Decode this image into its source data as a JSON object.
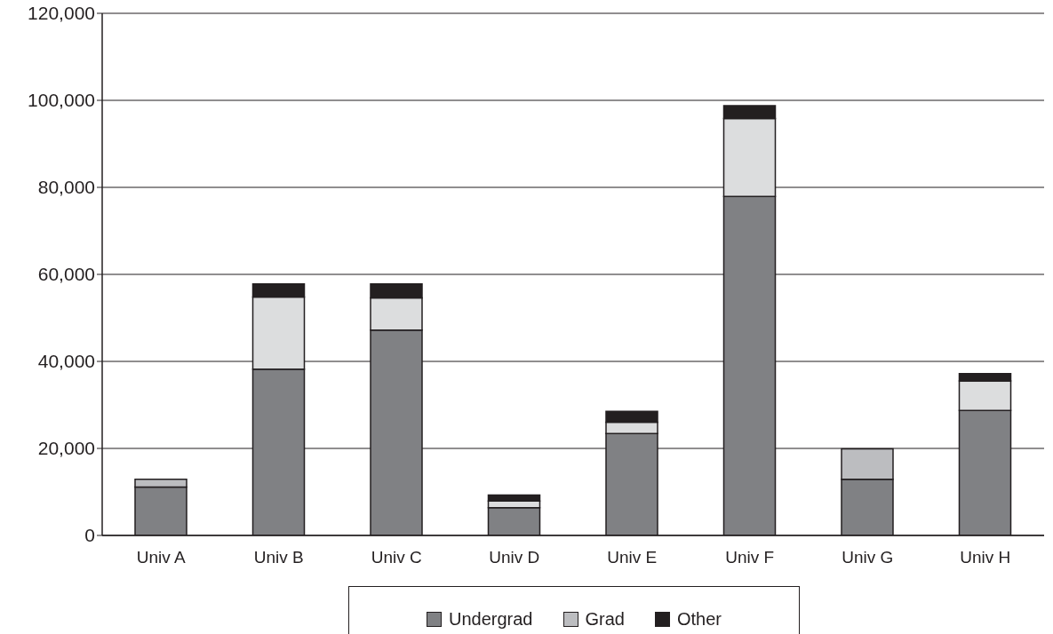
{
  "chart_data": {
    "type": "bar",
    "stacked": true,
    "categories": [
      "Univ A",
      "Univ B",
      "Univ C",
      "Univ D",
      "Univ E",
      "Univ F",
      "Univ G",
      "Univ H"
    ],
    "series": [
      {
        "name": "Undergrad",
        "color": "#808184",
        "values": [
          11100,
          38200,
          47200,
          6400,
          23400,
          77900,
          12900,
          28700
        ]
      },
      {
        "name": "Grad",
        "color": "#bcbdc0",
        "colors": [
          "#bcbdc0",
          "#dcddde",
          "#dcddde",
          "#dcddde",
          "#dcddde",
          "#dcddde",
          "#bcbdc0",
          "#dcddde"
        ],
        "values": [
          1800,
          16600,
          7400,
          1500,
          2600,
          17900,
          7000,
          6800
        ]
      },
      {
        "name": "Other",
        "color": "#231f20",
        "values": [
          null,
          3000,
          3200,
          1400,
          2500,
          3000,
          null,
          1700
        ]
      }
    ],
    "ylim": [
      0,
      120000
    ],
    "yticks": [
      0,
      {
        "value": 20000,
        "label": "20,000"
      },
      {
        "value": 40000,
        "label": "40,000"
      },
      {
        "value": 60000,
        "label": "60,000"
      },
      {
        "value": 80000,
        "label": "80,000"
      },
      {
        "value": 100000,
        "label": "100,000"
      },
      {
        "value": 120000,
        "label": "120,000"
      }
    ],
    "grid": "y",
    "legend": "bottom"
  }
}
